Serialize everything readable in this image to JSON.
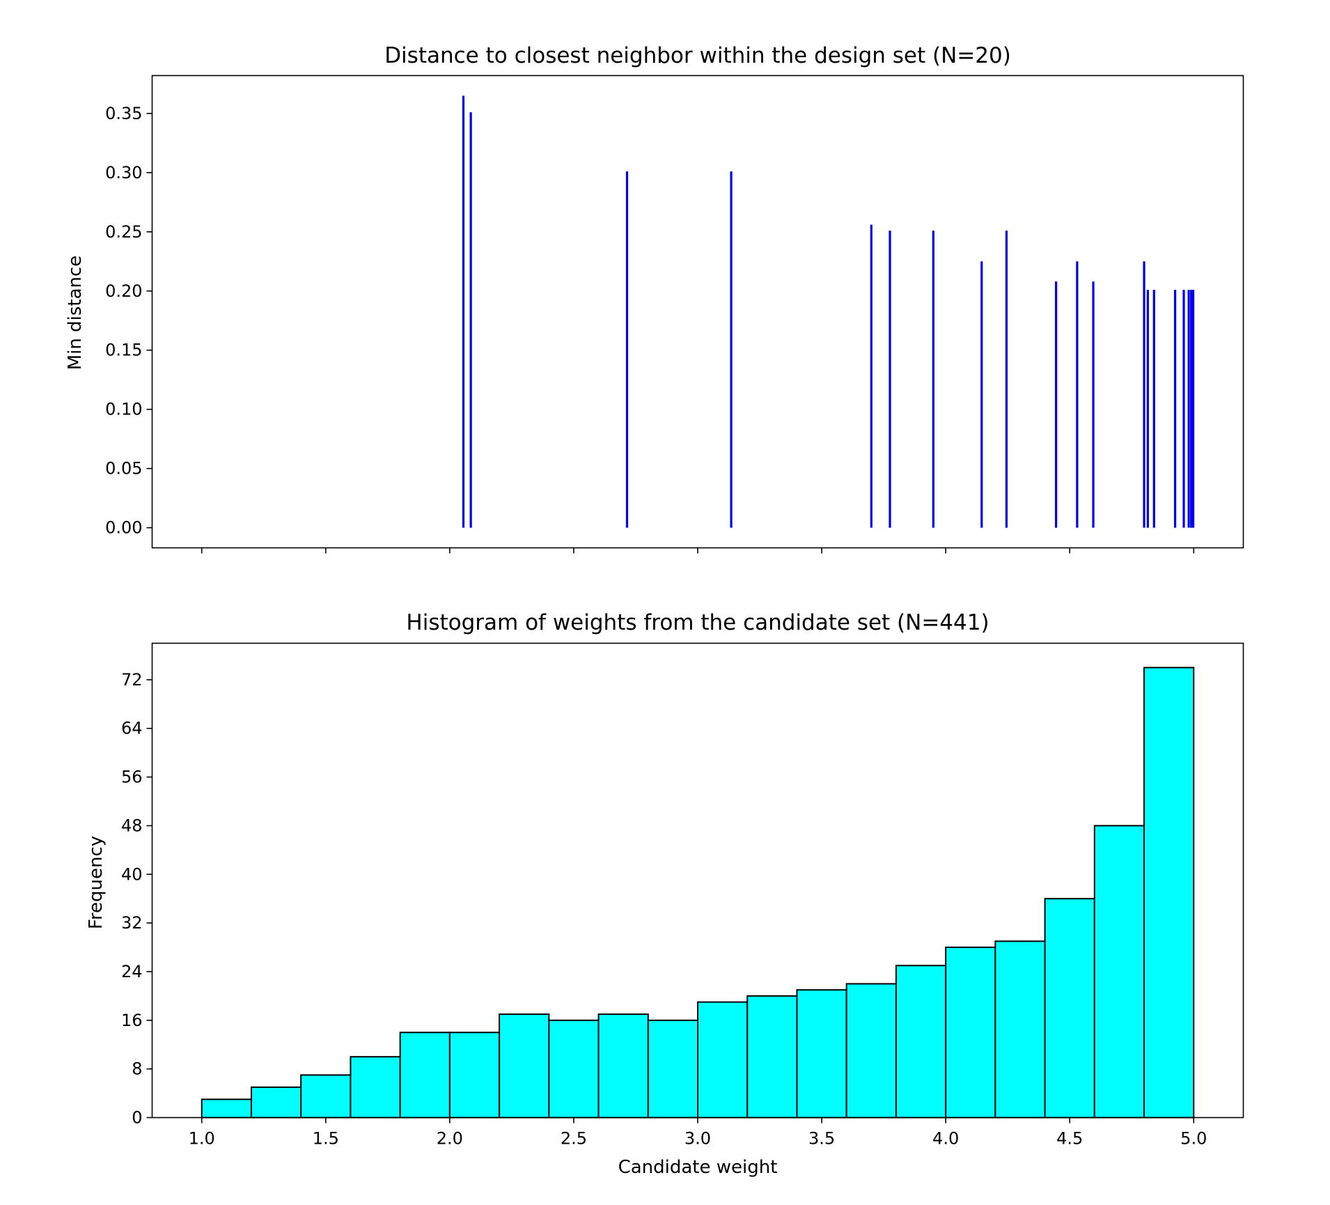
{
  "chart_data": [
    {
      "type": "stem",
      "title": "Distance to closest neighbor within the design set (N=20)",
      "xlabel": "",
      "ylabel": "Min distance",
      "xlim": [
        0.8,
        5.2
      ],
      "ylim": [
        -0.017,
        0.382
      ],
      "yticks": [
        0.0,
        0.05,
        0.1,
        0.15,
        0.2,
        0.25,
        0.3,
        0.35
      ],
      "ytick_labels": [
        "0.00",
        "0.05",
        "0.10",
        "0.15",
        "0.20",
        "0.25",
        "0.30",
        "0.35"
      ],
      "xticks": [
        1.0,
        1.5,
        2.0,
        2.5,
        3.0,
        3.5,
        4.0,
        4.5,
        5.0
      ],
      "show_xtick_labels": false,
      "color": "#0000ee",
      "x": [
        2.055,
        2.085,
        2.715,
        3.135,
        3.7,
        3.775,
        3.95,
        4.145,
        4.245,
        4.445,
        4.53,
        4.595,
        4.8,
        4.815,
        4.84,
        4.925,
        4.96,
        4.98,
        4.99,
        4.998
      ],
      "values": [
        0.365,
        0.351,
        0.301,
        0.301,
        0.256,
        0.251,
        0.251,
        0.225,
        0.251,
        0.208,
        0.225,
        0.208,
        0.225,
        0.201,
        0.201,
        0.201,
        0.201,
        0.201,
        0.201,
        0.201
      ]
    },
    {
      "type": "histogram",
      "title": "Histogram of weights from the candidate set (N=441)",
      "xlabel": "Candidate weight",
      "ylabel": "Frequency",
      "xlim": [
        0.8,
        5.2
      ],
      "ylim": [
        0,
        78
      ],
      "xticks": [
        1.0,
        1.5,
        2.0,
        2.5,
        3.0,
        3.5,
        4.0,
        4.5,
        5.0
      ],
      "xtick_labels": [
        "1.0",
        "1.5",
        "2.0",
        "2.5",
        "3.0",
        "3.5",
        "4.0",
        "4.5",
        "5.0"
      ],
      "yticks": [
        0,
        8,
        16,
        24,
        32,
        40,
        48,
        56,
        64,
        72
      ],
      "ytick_labels": [
        "0",
        "8",
        "16",
        "24",
        "32",
        "40",
        "48",
        "56",
        "64",
        "72"
      ],
      "fill": "#00ffff",
      "edge": "#000000",
      "bin_edges": [
        1.0,
        1.2,
        1.4,
        1.6,
        1.8,
        2.0,
        2.2,
        2.4,
        2.6,
        2.8,
        3.0,
        3.2,
        3.4,
        3.6,
        3.8,
        4.0,
        4.2,
        4.4,
        4.6,
        4.8,
        5.0
      ],
      "values": [
        3,
        5,
        7,
        10,
        14,
        14,
        17,
        16,
        17,
        16,
        19,
        20,
        21,
        22,
        25,
        28,
        29,
        36,
        48,
        74
      ]
    }
  ]
}
